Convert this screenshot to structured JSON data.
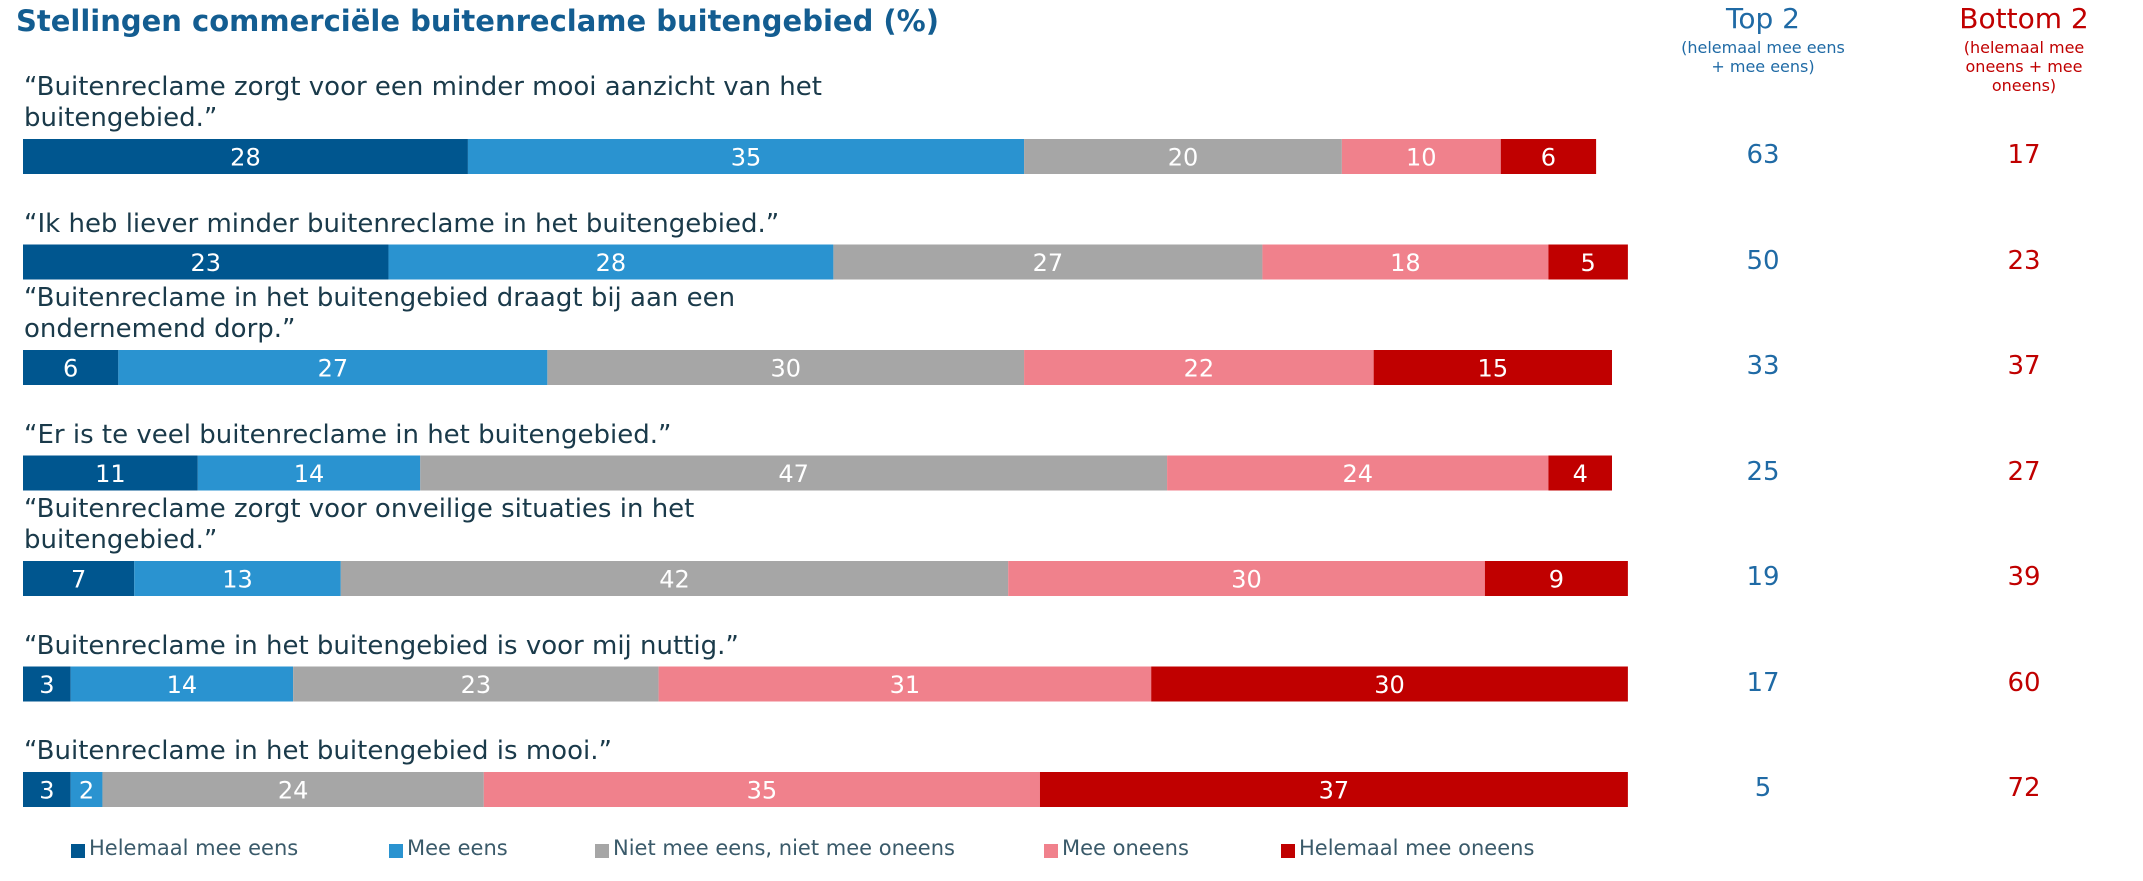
{
  "chart_data": {
    "type": "stacked-bar-horizontal",
    "title": "Stellingen commerciële buitenreclame buitengebied (%)",
    "categories": [
      "“Buitenreclame zorgt voor een minder mooi aanzicht van het buitengebied.”",
      "“Ik heb liever minder buitenreclame in het buitengebied.”",
      "“Buitenreclame in het buitengebied draagt bij aan een ondernemend dorp.”",
      "“Er is te veel buitenreclame in het buitengebied.”",
      "“Buitenreclame zorgt voor onveilige situaties in het buitengebied.”",
      "“Buitenreclame in het buitengebied is voor mij nuttig.”",
      "“Buitenreclame in het buitengebied is mooi.”"
    ],
    "xlim": [
      0,
      100
    ],
    "series": [
      {
        "name": "Helemaal mee eens",
        "color": "#00568f",
        "values": [
          28,
          23,
          6,
          11,
          7,
          3,
          3
        ]
      },
      {
        "name": "Mee eens",
        "color": "#2a93d0",
        "values": [
          35,
          28,
          27,
          14,
          13,
          14,
          2
        ]
      },
      {
        "name": "Niet mee eens, niet mee oneens",
        "color": "#a6a6a6",
        "values": [
          20,
          27,
          30,
          47,
          42,
          23,
          24
        ]
      },
      {
        "name": "Mee oneens",
        "color": "#f0818c",
        "values": [
          10,
          18,
          22,
          24,
          30,
          31,
          35
        ]
      },
      {
        "name": "Helemaal mee oneens",
        "color": "#c00000",
        "values": [
          6,
          5,
          15,
          4,
          9,
          30,
          37
        ]
      }
    ],
    "summary_columns": [
      {
        "title": "Top 2",
        "subtitle": "(helemaal mee eens + mee eens)",
        "color": "#1f6aa5",
        "values": [
          63,
          50,
          33,
          25,
          19,
          17,
          5
        ]
      },
      {
        "title": "Bottom 2",
        "subtitle": "(helemaal mee oneens + mee oneens)",
        "color": "#c00000",
        "values": [
          17,
          23,
          37,
          27,
          39,
          60,
          72
        ]
      }
    ],
    "legend": "bottom"
  }
}
